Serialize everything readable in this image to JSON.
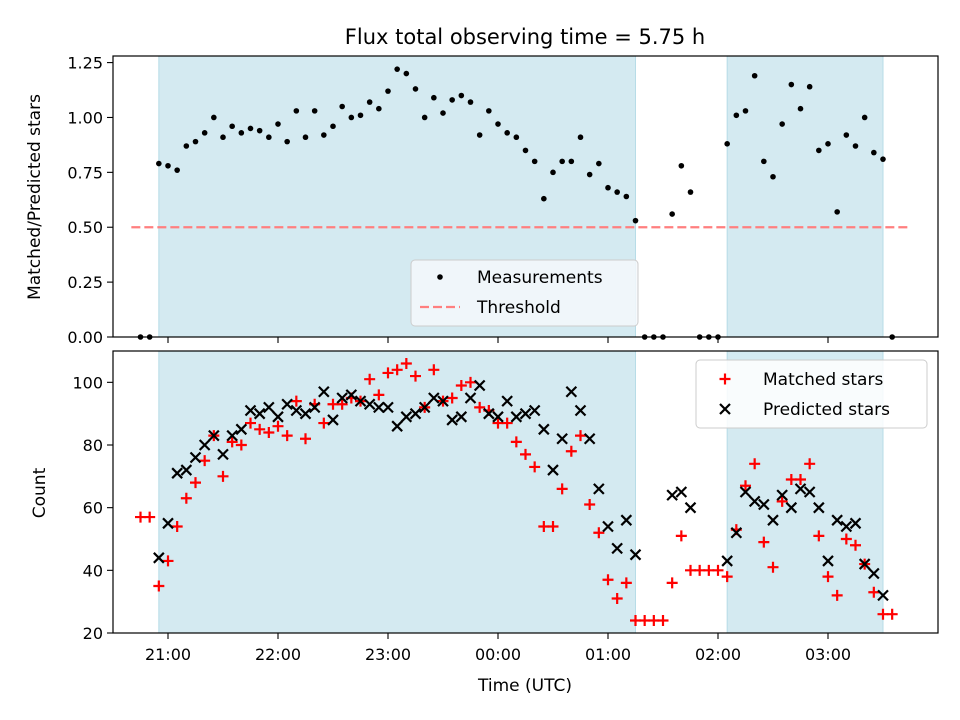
{
  "chart_data": [
    {
      "type": "scatter",
      "title": "Flux total observing time = 5.75 h",
      "xlabel": "",
      "ylabel": "Matched/Predicted stars",
      "x_unit": "time",
      "xlim": [
        "20:30",
        "04:00"
      ],
      "ylim": [
        0,
        1.28
      ],
      "yticks": [
        "0.00",
        "0.25",
        "0.50",
        "0.75",
        "1.00",
        "1.25"
      ],
      "shaded_intervals": [
        [
          "20:55",
          "01:15"
        ],
        [
          "02:05",
          "03:30"
        ]
      ],
      "legend": {
        "placement": "lower-center",
        "entries": [
          "Measurements",
          "Threshold"
        ]
      },
      "threshold": {
        "name": "Threshold",
        "y": 0.5,
        "x_range": [
          "20:40",
          "03:45"
        ],
        "color": "#ff7f7f",
        "style": "dashed"
      },
      "series": [
        {
          "name": "Measurements",
          "color": "#000000",
          "marker": "dot",
          "points": [
            [
              "20:45",
              0.0
            ],
            [
              "20:50",
              0.0
            ],
            [
              "20:55",
              0.79
            ],
            [
              "21:00",
              0.78
            ],
            [
              "21:05",
              0.76
            ],
            [
              "21:10",
              0.87
            ],
            [
              "21:15",
              0.89
            ],
            [
              "21:20",
              0.93
            ],
            [
              "21:25",
              1.0
            ],
            [
              "21:30",
              0.91
            ],
            [
              "21:35",
              0.96
            ],
            [
              "21:40",
              0.93
            ],
            [
              "21:45",
              0.95
            ],
            [
              "21:50",
              0.94
            ],
            [
              "21:55",
              0.91
            ],
            [
              "22:00",
              0.97
            ],
            [
              "22:05",
              0.89
            ],
            [
              "22:10",
              1.03
            ],
            [
              "22:15",
              0.91
            ],
            [
              "22:20",
              1.03
            ],
            [
              "22:25",
              0.92
            ],
            [
              "22:30",
              0.96
            ],
            [
              "22:35",
              1.05
            ],
            [
              "22:40",
              1.0
            ],
            [
              "22:45",
              1.01
            ],
            [
              "22:50",
              1.07
            ],
            [
              "22:55",
              1.04
            ],
            [
              "23:00",
              1.12
            ],
            [
              "23:05",
              1.22
            ],
            [
              "23:10",
              1.2
            ],
            [
              "23:15",
              1.13
            ],
            [
              "23:20",
              1.0
            ],
            [
              "23:25",
              1.09
            ],
            [
              "23:30",
              1.02
            ],
            [
              "23:35",
              1.08
            ],
            [
              "23:40",
              1.1
            ],
            [
              "23:45",
              1.07
            ],
            [
              "23:50",
              0.92
            ],
            [
              "23:55",
              1.03
            ],
            [
              "00:00",
              0.97
            ],
            [
              "00:05",
              0.93
            ],
            [
              "00:10",
              0.91
            ],
            [
              "00:15",
              0.85
            ],
            [
              "00:20",
              0.8
            ],
            [
              "00:25",
              0.63
            ],
            [
              "00:30",
              0.75
            ],
            [
              "00:35",
              0.8
            ],
            [
              "00:40",
              0.8
            ],
            [
              "00:45",
              0.91
            ],
            [
              "00:50",
              0.74
            ],
            [
              "00:55",
              0.79
            ],
            [
              "01:00",
              0.68
            ],
            [
              "01:05",
              0.66
            ],
            [
              "01:10",
              0.64
            ],
            [
              "01:15",
              0.53
            ],
            [
              "01:20",
              0.0
            ],
            [
              "01:25",
              0.0
            ],
            [
              "01:30",
              0.0
            ],
            [
              "01:35",
              0.56
            ],
            [
              "01:40",
              0.78
            ],
            [
              "01:45",
              0.66
            ],
            [
              "01:50",
              0.0
            ],
            [
              "01:55",
              0.0
            ],
            [
              "02:00",
              0.0
            ],
            [
              "02:05",
              0.88
            ],
            [
              "02:10",
              1.01
            ],
            [
              "02:15",
              1.03
            ],
            [
              "02:20",
              1.19
            ],
            [
              "02:25",
              0.8
            ],
            [
              "02:30",
              0.73
            ],
            [
              "02:35",
              0.97
            ],
            [
              "02:40",
              1.15
            ],
            [
              "02:45",
              1.04
            ],
            [
              "02:50",
              1.14
            ],
            [
              "02:55",
              0.85
            ],
            [
              "03:00",
              0.88
            ],
            [
              "03:05",
              0.57
            ],
            [
              "03:10",
              0.92
            ],
            [
              "03:15",
              0.87
            ],
            [
              "03:20",
              1.0
            ],
            [
              "03:25",
              0.84
            ],
            [
              "03:30",
              0.81
            ],
            [
              "03:35",
              0.0
            ]
          ]
        }
      ]
    },
    {
      "type": "scatter",
      "title": "",
      "xlabel": "Time (UTC)",
      "ylabel": "Count",
      "x_unit": "time",
      "xlim": [
        "20:30",
        "04:00"
      ],
      "ylim": [
        20,
        110
      ],
      "xticks": [
        "21:00",
        "22:00",
        "23:00",
        "00:00",
        "01:00",
        "02:00",
        "03:00"
      ],
      "yticks": [
        "20",
        "40",
        "60",
        "80",
        "100"
      ],
      "shaded_intervals": [
        [
          "20:55",
          "01:15"
        ],
        [
          "02:05",
          "03:30"
        ]
      ],
      "legend": {
        "placement": "top-right",
        "entries": [
          "Matched stars",
          "Predicted stars"
        ]
      },
      "series": [
        {
          "name": "Matched stars",
          "color": "#ff0000",
          "marker": "plus",
          "points": [
            [
              "20:45",
              57
            ],
            [
              "20:50",
              57
            ],
            [
              "20:55",
              35
            ],
            [
              "21:00",
              43
            ],
            [
              "21:05",
              54
            ],
            [
              "21:10",
              63
            ],
            [
              "21:15",
              68
            ],
            [
              "21:20",
              75
            ],
            [
              "21:25",
              83
            ],
            [
              "21:30",
              70
            ],
            [
              "21:35",
              81
            ],
            [
              "21:40",
              80
            ],
            [
              "21:45",
              87
            ],
            [
              "21:50",
              85
            ],
            [
              "21:55",
              84
            ],
            [
              "22:00",
              86
            ],
            [
              "22:05",
              83
            ],
            [
              "22:10",
              94
            ],
            [
              "22:15",
              82
            ],
            [
              "22:20",
              93
            ],
            [
              "22:25",
              87
            ],
            [
              "22:30",
              93
            ],
            [
              "22:35",
              93
            ],
            [
              "22:40",
              95
            ],
            [
              "22:45",
              94
            ],
            [
              "22:50",
              101
            ],
            [
              "22:55",
              96
            ],
            [
              "23:00",
              103
            ],
            [
              "23:05",
              104
            ],
            [
              "23:10",
              106
            ],
            [
              "23:15",
              102
            ],
            [
              "23:20",
              92
            ],
            [
              "23:25",
              104
            ],
            [
              "23:30",
              94
            ],
            [
              "23:35",
              95
            ],
            [
              "23:40",
              99
            ],
            [
              "23:45",
              100
            ],
            [
              "23:50",
              92
            ],
            [
              "23:55",
              91
            ],
            [
              "00:00",
              87
            ],
            [
              "00:05",
              87
            ],
            [
              "00:10",
              81
            ],
            [
              "00:15",
              77
            ],
            [
              "00:20",
              73
            ],
            [
              "00:25",
              54
            ],
            [
              "00:30",
              54
            ],
            [
              "00:35",
              66
            ],
            [
              "00:40",
              78
            ],
            [
              "00:45",
              83
            ],
            [
              "00:50",
              61
            ],
            [
              "00:55",
              52
            ],
            [
              "01:00",
              37
            ],
            [
              "01:05",
              31
            ],
            [
              "01:10",
              36
            ],
            [
              "01:15",
              24
            ],
            [
              "01:20",
              24
            ],
            [
              "01:25",
              24
            ],
            [
              "01:30",
              24
            ],
            [
              "01:35",
              36
            ],
            [
              "01:40",
              51
            ],
            [
              "01:45",
              40
            ],
            [
              "01:50",
              40
            ],
            [
              "01:55",
              40
            ],
            [
              "02:00",
              40
            ],
            [
              "02:05",
              38
            ],
            [
              "02:10",
              53
            ],
            [
              "02:15",
              67
            ],
            [
              "02:20",
              74
            ],
            [
              "02:25",
              49
            ],
            [
              "02:30",
              41
            ],
            [
              "02:35",
              62
            ],
            [
              "02:40",
              69
            ],
            [
              "02:45",
              69
            ],
            [
              "02:50",
              74
            ],
            [
              "02:55",
              51
            ],
            [
              "03:00",
              38
            ],
            [
              "03:05",
              32
            ],
            [
              "03:10",
              50
            ],
            [
              "03:15",
              48
            ],
            [
              "03:20",
              42
            ],
            [
              "03:25",
              33
            ],
            [
              "03:30",
              26
            ],
            [
              "03:35",
              26
            ]
          ]
        },
        {
          "name": "Predicted stars",
          "color": "#000000",
          "marker": "cross",
          "points": [
            [
              "20:55",
              44
            ],
            [
              "21:00",
              55
            ],
            [
              "21:05",
              71
            ],
            [
              "21:10",
              72
            ],
            [
              "21:15",
              76
            ],
            [
              "21:20",
              80
            ],
            [
              "21:25",
              83
            ],
            [
              "21:30",
              77
            ],
            [
              "21:35",
              83
            ],
            [
              "21:40",
              85
            ],
            [
              "21:45",
              91
            ],
            [
              "21:50",
              90
            ],
            [
              "21:55",
              92
            ],
            [
              "22:00",
              89
            ],
            [
              "22:05",
              93
            ],
            [
              "22:10",
              91
            ],
            [
              "22:15",
              90
            ],
            [
              "22:20",
              92
            ],
            [
              "22:25",
              97
            ],
            [
              "22:30",
              88
            ],
            [
              "22:35",
              95
            ],
            [
              "22:40",
              96
            ],
            [
              "22:45",
              94
            ],
            [
              "22:50",
              93
            ],
            [
              "22:55",
              92
            ],
            [
              "23:00",
              92
            ],
            [
              "23:05",
              86
            ],
            [
              "23:10",
              89
            ],
            [
              "23:15",
              90
            ],
            [
              "23:20",
              92
            ],
            [
              "23:25",
              95
            ],
            [
              "23:30",
              94
            ],
            [
              "23:35",
              88
            ],
            [
              "23:40",
              89
            ],
            [
              "23:45",
              95
            ],
            [
              "23:50",
              99
            ],
            [
              "23:55",
              90
            ],
            [
              "00:00",
              89
            ],
            [
              "00:05",
              94
            ],
            [
              "00:10",
              89
            ],
            [
              "00:15",
              90
            ],
            [
              "00:20",
              91
            ],
            [
              "00:25",
              85
            ],
            [
              "00:30",
              72
            ],
            [
              "00:35",
              82
            ],
            [
              "00:40",
              97
            ],
            [
              "00:45",
              91
            ],
            [
              "00:50",
              82
            ],
            [
              "00:55",
              66
            ],
            [
              "01:00",
              54
            ],
            [
              "01:05",
              47
            ],
            [
              "01:10",
              56
            ],
            [
              "01:15",
              45
            ],
            [
              "01:35",
              64
            ],
            [
              "01:40",
              65
            ],
            [
              "01:45",
              60
            ],
            [
              "02:05",
              43
            ],
            [
              "02:10",
              52
            ],
            [
              "02:15",
              65
            ],
            [
              "02:20",
              62
            ],
            [
              "02:25",
              61
            ],
            [
              "02:30",
              56
            ],
            [
              "02:35",
              64
            ],
            [
              "02:40",
              60
            ],
            [
              "02:45",
              66
            ],
            [
              "02:50",
              65
            ],
            [
              "02:55",
              60
            ],
            [
              "03:00",
              43
            ],
            [
              "03:05",
              56
            ],
            [
              "03:10",
              54
            ],
            [
              "03:15",
              55
            ],
            [
              "03:20",
              42
            ],
            [
              "03:25",
              39
            ],
            [
              "03:30",
              32
            ]
          ]
        }
      ]
    }
  ],
  "colors": {
    "shade": "#d4eaf1",
    "shade_edge": "#b7dce7",
    "legend_bg": "#f5f8fb"
  }
}
